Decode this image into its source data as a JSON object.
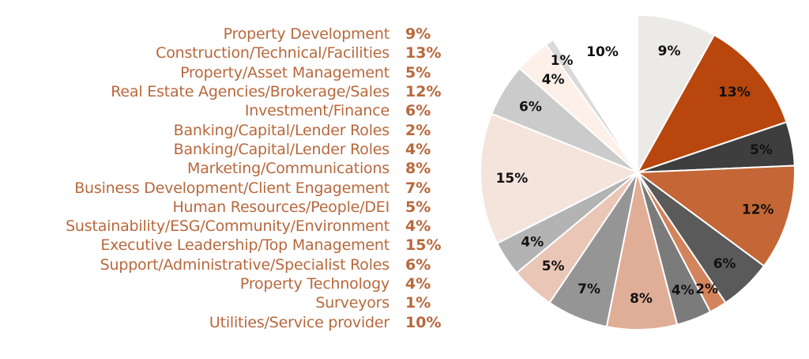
{
  "chart_data": {
    "type": "pie",
    "title": "",
    "start": "top",
    "direction": "clockwise",
    "categories": [
      "Property Development",
      "Construction/Technical/Facilities",
      "Property/Asset Management",
      "Real Estate Agencies/Brokerage/Sales",
      "Investment/Finance",
      "Banking/Capital/Lender Roles",
      "Banking/Capital/Lender Roles",
      "Marketing/Communications",
      "Business Development/Client Engagement",
      "Human Resources/People/DEI",
      "Sustainability/ESG/Community/Environment",
      "Executive Leadership/Top Management",
      "Support/Administrative/Specialist Roles",
      "Property Technology",
      "Surveyors",
      "Utilities/Service provider"
    ],
    "values": [
      9,
      13,
      5,
      12,
      6,
      2,
      4,
      8,
      7,
      5,
      4,
      15,
      6,
      4,
      1,
      10
    ],
    "labels": [
      "9%",
      "13%",
      "5%",
      "12%",
      "6%",
      "2%",
      "4%",
      "8%",
      "7%",
      "5%",
      "4%",
      "15%",
      "6%",
      "4%",
      "1%",
      "10%"
    ],
    "colors": [
      "#ebeae6",
      "#b8460d",
      "#3e3e3e",
      "#c46635",
      "#5a5a5a",
      "#d4845c",
      "#7b7b7b",
      "#e0ae96",
      "#959595",
      "#eac6b6",
      "#b3b3b3",
      "#f5e4dc",
      "#cbcbcb",
      "#fdf0e8",
      "#d9d9d9",
      "#ffffff"
    ],
    "legend_position": "left"
  }
}
